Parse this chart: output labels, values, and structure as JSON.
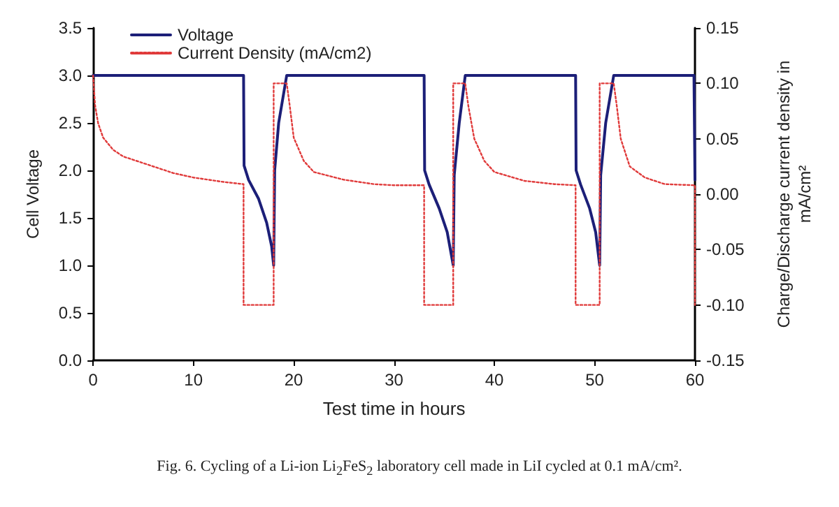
{
  "chart_data": {
    "type": "line",
    "xlabel": "Test time in hours",
    "ylabel": "Cell Voltage",
    "y2label": "Charge/Discharge current density in\nmA/cm²",
    "annotations": [
      "Fig. 6. Cycling of a Li-ion Li$_{2}$FeS$_{2}$ laboratory cell made in LiI cycled at 0.1 mA/cm²."
    ],
    "xlim": [
      0,
      60
    ],
    "xticks": [
      0,
      10,
      20,
      30,
      40,
      50,
      60
    ],
    "ylim": [
      0,
      3.5
    ],
    "yticks": [
      {
        "value": 0,
        "label": "0.0"
      },
      {
        "value": 0.5,
        "label": "0.5"
      },
      {
        "value": 1,
        "label": "1.0"
      },
      {
        "value": 1.5,
        "label": "1.5"
      },
      {
        "value": 2,
        "label": "2.0"
      },
      {
        "value": 2.5,
        "label": "2.5"
      },
      {
        "value": 3,
        "label": "3.0"
      },
      {
        "value": 3.5,
        "label": "3.5"
      }
    ],
    "y2lim": [
      -0.15,
      0.15
    ],
    "y2ticks": [
      {
        "value": -0.15,
        "label": "-0.15"
      },
      {
        "value": -0.1,
        "label": "-0.10"
      },
      {
        "value": -0.05,
        "label": "-0.05"
      },
      {
        "value": 0,
        "label": "0.00"
      },
      {
        "value": 0.05,
        "label": "0.05"
      },
      {
        "value": 0.1,
        "label": "0.10"
      },
      {
        "value": 0.15,
        "label": "0.15"
      }
    ],
    "grid": false,
    "legend": "top left",
    "marker": "none",
    "series": [
      {
        "name": "Voltage",
        "color": "#1c1f78",
        "line_style": "solid",
        "x": [
          0,
          15,
          15.05,
          15.5,
          16.5,
          17.3,
          17.8,
          18,
          18.1,
          18.5,
          19.3,
          33,
          33.05,
          33.5,
          34.5,
          35.3,
          35.9,
          36,
          36.5,
          37.1,
          48.1,
          48.15,
          48.6,
          49.5,
          50.1,
          50.5,
          50.6,
          51.1,
          51.9,
          59.9,
          60
        ],
        "values": [
          3,
          3,
          2.05,
          1.9,
          1.7,
          1.45,
          1.2,
          1,
          2,
          2.5,
          3,
          3,
          2,
          1.85,
          1.6,
          1.35,
          1,
          1.95,
          2.5,
          3,
          3,
          2,
          1.85,
          1.6,
          1.35,
          1,
          1.95,
          2.5,
          3,
          3,
          1.9
        ]
      },
      {
        "name": "Current Density (mA/cm2)",
        "color": "#e03a3a",
        "line_style": "dotted",
        "axis": "y2",
        "x": [
          0,
          0.2,
          0.5,
          1,
          2,
          3,
          5,
          8,
          10,
          13,
          15,
          15,
          18,
          18,
          19.3,
          19.6,
          20,
          21,
          22,
          25,
          28,
          30,
          33,
          33,
          35.9,
          35.9,
          37.1,
          37.4,
          38,
          39,
          40,
          43,
          46,
          48.1,
          48.1,
          50.5,
          50.5,
          51.9,
          52.2,
          52.6,
          53.5,
          55,
          57,
          60,
          60
        ],
        "values": [
          0.107,
          0.08,
          0.064,
          0.051,
          0.04,
          0.034,
          0.028,
          0.019,
          0.015,
          0.011,
          0.009,
          -0.1,
          -0.1,
          0.1,
          0.1,
          0.08,
          0.051,
          0.03,
          0.02,
          0.013,
          0.009,
          0.008,
          0.008,
          -0.1,
          -0.1,
          0.1,
          0.1,
          0.08,
          0.05,
          0.03,
          0.02,
          0.012,
          0.009,
          0.008,
          -0.1,
          -0.1,
          0.1,
          0.1,
          0.08,
          0.05,
          0.025,
          0.015,
          0.009,
          0.008,
          -0.1
        ]
      }
    ]
  }
}
